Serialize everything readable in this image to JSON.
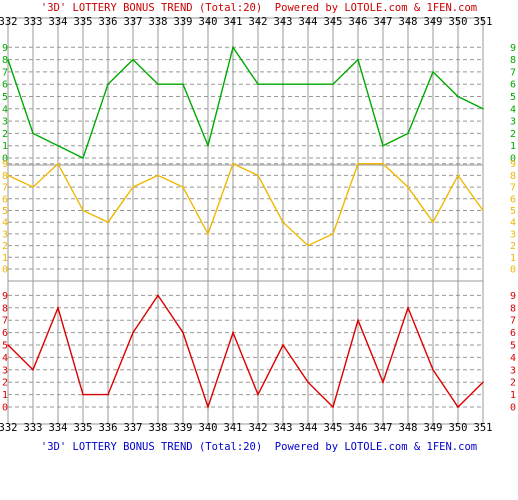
{
  "header_title": "'3D' LOTTERY BONUS TREND (Total:20)  Powered by LOTOLE.com & 1FEN.com",
  "footer_title": "'3D' LOTTERY BONUS TREND (Total:20)  Powered by LOTOLE.com & 1FEN.com",
  "colors": {
    "header_text": "#cc0000",
    "footer_text": "#0000cc",
    "grid": "#999999",
    "axis_text": "#000000"
  },
  "chart_data": {
    "type": "line",
    "x": [
      332,
      333,
      334,
      335,
      336,
      337,
      338,
      339,
      340,
      341,
      342,
      343,
      344,
      345,
      346,
      347,
      348,
      349,
      350,
      351
    ],
    "series": [
      {
        "color": "#00aa00",
        "values": [
          8,
          2,
          1,
          0,
          6,
          8,
          6,
          6,
          1,
          9,
          6,
          6,
          6,
          6,
          8,
          1,
          2,
          7,
          5,
          4
        ],
        "ylim": [
          0,
          9
        ],
        "tick_labels": [
          "0",
          "1",
          "2",
          "3",
          "4",
          "5",
          "6",
          "7",
          "8",
          "9"
        ]
      },
      {
        "color": "#f0b800",
        "values": [
          8,
          7,
          9,
          5,
          4,
          7,
          8,
          7,
          3,
          9,
          8,
          4,
          2,
          3,
          9,
          9,
          7,
          4,
          8,
          5
        ],
        "ylim": [
          0,
          9
        ],
        "tick_labels": [
          "0",
          "1",
          "2",
          "3",
          "4",
          "5",
          "6",
          "7",
          "8",
          "9"
        ]
      },
      {
        "color": "#dd0000",
        "values": [
          5,
          3,
          8,
          1,
          1,
          6,
          9,
          6,
          0,
          6,
          1,
          5,
          2,
          0,
          7,
          2,
          8,
          3,
          0,
          2
        ],
        "ylim": [
          0,
          9
        ],
        "tick_labels": [
          "0",
          "1",
          "2",
          "3",
          "4",
          "5",
          "6",
          "7",
          "8",
          "9"
        ]
      }
    ],
    "grid": true
  }
}
